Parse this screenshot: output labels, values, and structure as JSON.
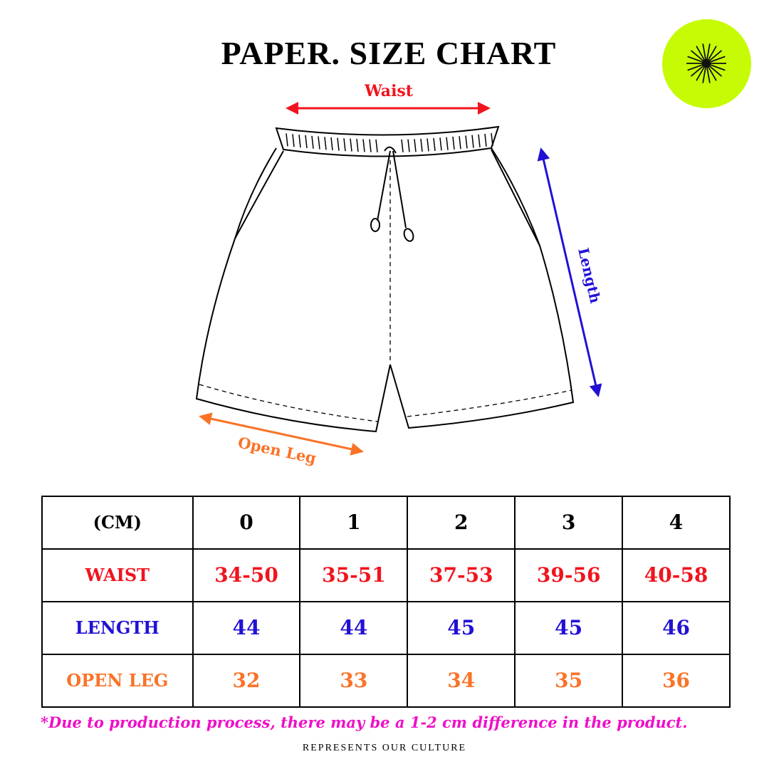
{
  "title": "PAPER. SIZE CHART",
  "logo": {
    "icon": "starburst-icon",
    "color": "#c6fb05"
  },
  "diagram": {
    "waist_label": "Waist",
    "length_label": "Length",
    "open_leg_label": "Open Leg",
    "colors": {
      "waist": "#f0141e",
      "length": "#2211d4",
      "open_leg": "#fa7328"
    }
  },
  "table": {
    "unit_header": "(CM)",
    "sizes": [
      "0",
      "1",
      "2",
      "3",
      "4"
    ],
    "rows": [
      {
        "label": "WAIST",
        "values": [
          "34-50",
          "35-51",
          "37-53",
          "39-56",
          "40-58"
        ]
      },
      {
        "label": "LENGTH",
        "values": [
          "44",
          "44",
          "45",
          "45",
          "46"
        ]
      },
      {
        "label": "OPEN LEG",
        "values": [
          "32",
          "33",
          "34",
          "35",
          "36"
        ]
      }
    ]
  },
  "note": "*Due to production process, there may be a 1-2 cm difference in the product.",
  "footer": "REPRESENTS OUR CULTURE"
}
